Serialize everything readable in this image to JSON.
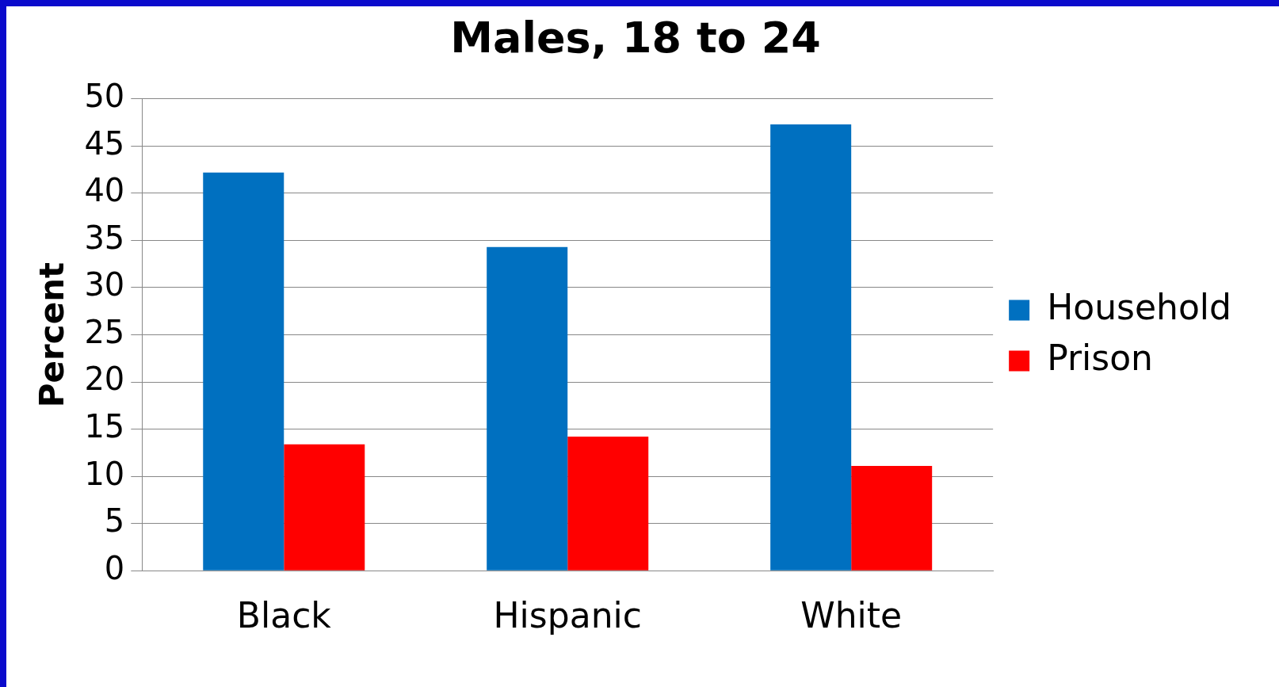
{
  "chart_data": {
    "type": "bar",
    "title": "Males, 18 to 24",
    "ylabel": "Percent",
    "categories": [
      "Black",
      "Hispanic",
      "White"
    ],
    "series": [
      {
        "name": "Household",
        "color": "#0070c0",
        "values": [
          42.2,
          34.3,
          47.3
        ]
      },
      {
        "name": "Prison",
        "color": "#ff0000",
        "values": [
          13.4,
          14.2,
          11.1
        ]
      }
    ],
    "ylim": [
      0,
      50
    ],
    "yticks": [
      0,
      5,
      10,
      15,
      20,
      25,
      30,
      35,
      40,
      45,
      50
    ],
    "grid": "y",
    "legend": "right"
  }
}
